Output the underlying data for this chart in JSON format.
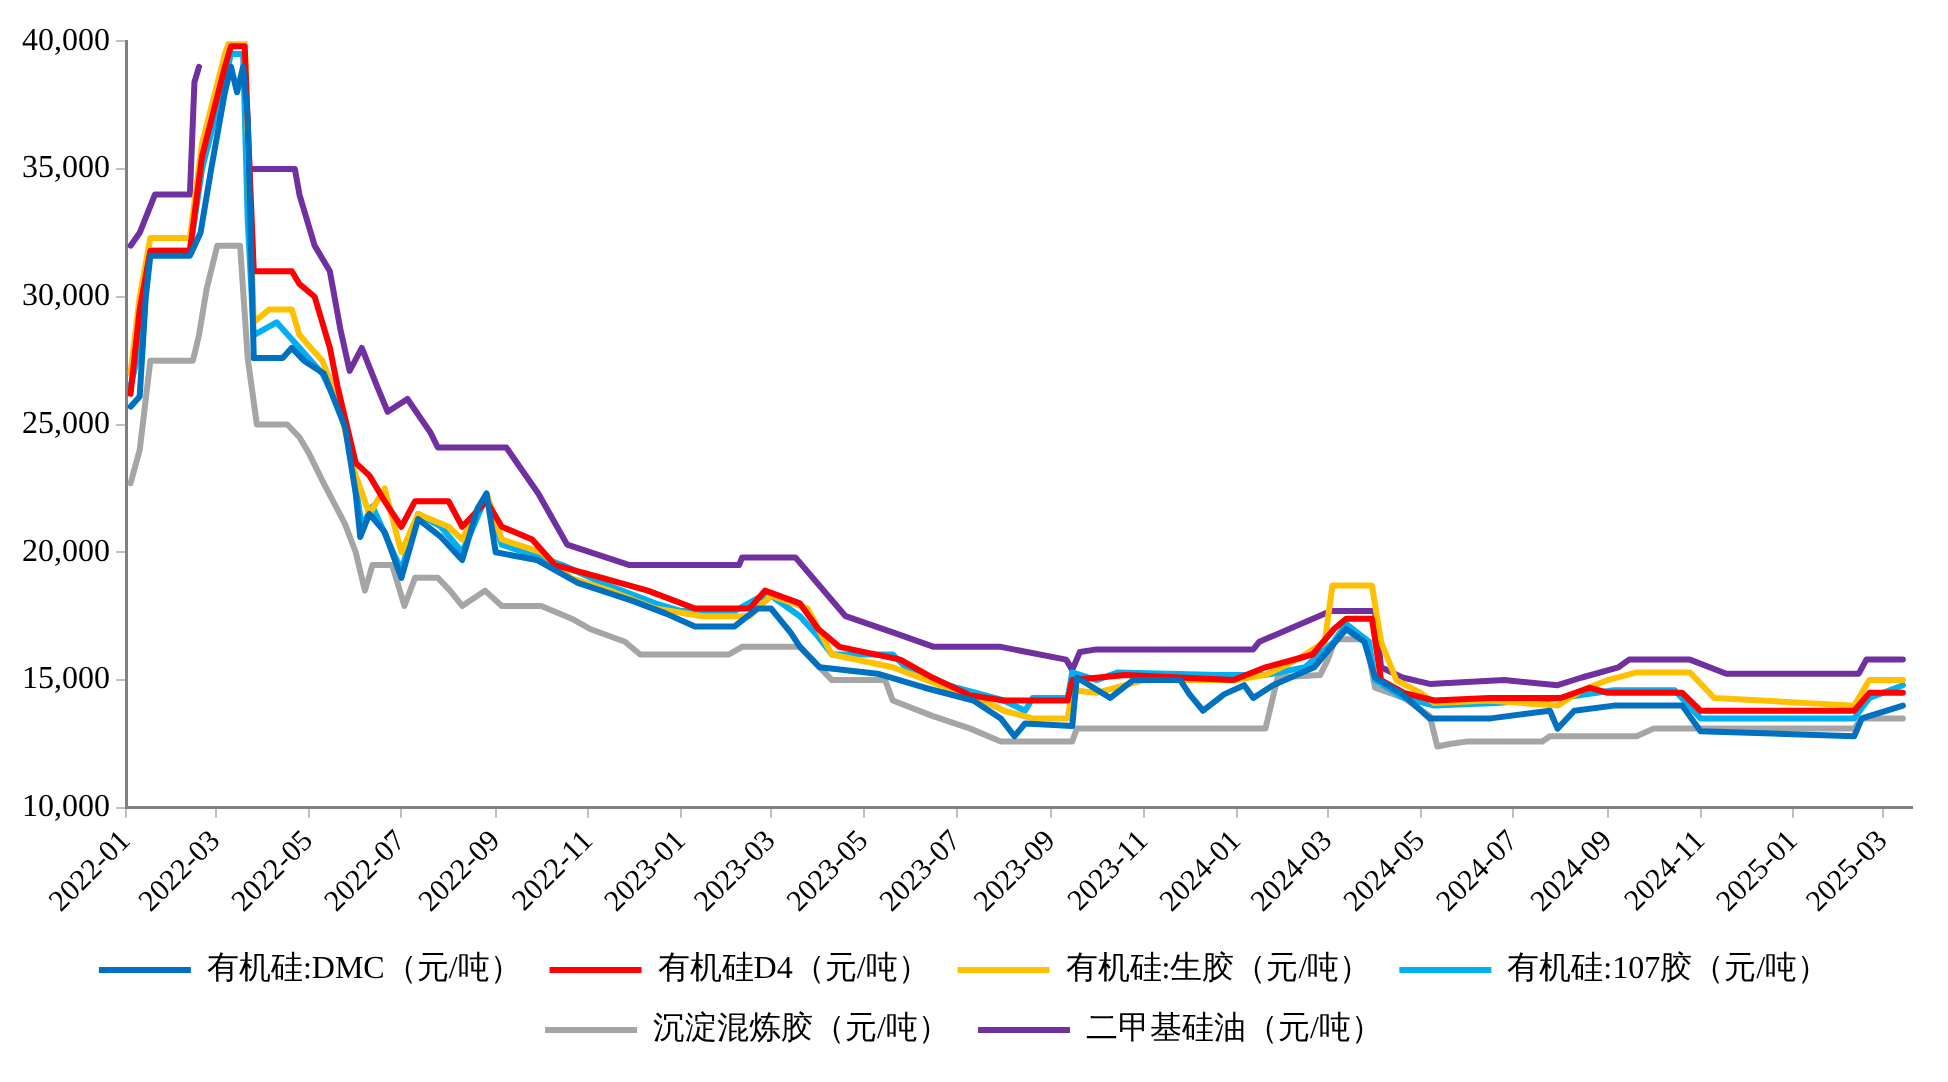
{
  "chart_data": {
    "type": "line",
    "marker": "none",
    "legend": "bottom",
    "grid": false,
    "xlim": [
      "2022-01-01",
      "2025-03-20"
    ],
    "xticks": [
      "2022-01",
      "2022-03",
      "2022-05",
      "2022-07",
      "2022-09",
      "2022-11",
      "2023-01",
      "2023-03",
      "2023-05",
      "2023-07",
      "2023-09",
      "2023-11",
      "2024-01",
      "2024-03",
      "2024-05",
      "2024-07",
      "2024-09",
      "2024-11",
      "2025-01",
      "2025-03"
    ],
    "ylim": [
      10000,
      40000
    ],
    "yticks": [
      {
        "value": 10000,
        "label": "10,000"
      },
      {
        "value": 15000,
        "label": "15,000"
      },
      {
        "value": 20000,
        "label": "20,000"
      },
      {
        "value": 25000,
        "label": "25,000"
      },
      {
        "value": 30000,
        "label": "30,000"
      },
      {
        "value": 35000,
        "label": "35,000"
      },
      {
        "value": 40000,
        "label": "40,000"
      }
    ],
    "series": [
      {
        "name": "有机硅:DMC（元/吨）",
        "color": "#0070c0",
        "x": [
          "2022-01-04",
          "2022-01-10",
          "2022-01-14",
          "2022-01-17",
          "2022-02-12",
          "2022-02-19",
          "2022-02-26",
          "2022-03-07",
          "2022-03-11",
          "2022-03-15",
          "2022-03-19",
          "2022-03-22",
          "2022-03-26",
          "2022-04-14",
          "2022-04-20",
          "2022-04-28",
          "2022-05-11",
          "2022-05-25",
          "2022-06-01",
          "2022-06-04",
          "2022-06-10",
          "2022-06-20",
          "2022-07-01",
          "2022-07-12",
          "2022-07-27",
          "2022-08-10",
          "2022-08-20",
          "2022-08-26",
          "2022-09-01",
          "2022-09-28",
          "2022-10-25",
          "2022-11-30",
          "2022-12-22",
          "2023-01-10",
          "2023-02-05",
          "2023-02-20",
          "2023-03-01",
          "2023-03-14",
          "2023-03-20",
          "2023-04-02",
          "2023-05-10",
          "2023-06-10",
          "2023-07-12",
          "2023-07-30",
          "2023-08-08",
          "2023-08-15",
          "2023-09-15",
          "2023-09-18",
          "2023-10-10",
          "2023-10-25",
          "2023-11-25",
          "2023-12-01",
          "2023-12-10",
          "2023-12-24",
          "2024-01-06",
          "2024-01-12",
          "2024-01-25",
          "2024-02-21",
          "2024-03-13",
          "2024-03-25",
          "2024-04-01",
          "2024-04-19",
          "2024-05-07",
          "2024-06-16",
          "2024-07-25",
          "2024-07-30",
          "2024-08-10",
          "2024-09-05",
          "2024-10-20",
          "2024-11-01",
          "2025-02-10",
          "2025-02-15",
          "2025-03-14"
        ],
        "values": [
          25700,
          26100,
          30000,
          31600,
          31600,
          32500,
          35000,
          38000,
          39000,
          38000,
          39000,
          37000,
          27600,
          27600,
          28000,
          27500,
          27000,
          24900,
          22300,
          20600,
          21500,
          20800,
          19000,
          21300,
          20600,
          19700,
          21700,
          22300,
          20000,
          19700,
          18800,
          18100,
          17600,
          17100,
          17100,
          17800,
          17800,
          16850,
          16300,
          15500,
          15250,
          14700,
          14200,
          13500,
          12800,
          13300,
          13200,
          15100,
          14300,
          15000,
          15000,
          14450,
          13800,
          14450,
          14800,
          14300,
          14800,
          15500,
          17000,
          16500,
          15100,
          14450,
          13500,
          13500,
          13800,
          13100,
          13800,
          14000,
          14000,
          13000,
          12800,
          13500,
          14000
        ]
      },
      {
        "name": "有机硅D4（元/吨）",
        "color": "#ff0000",
        "x": [
          "2022-01-04",
          "2022-01-10",
          "2022-01-17",
          "2022-02-12",
          "2022-02-20",
          "2022-03-07",
          "2022-03-11",
          "2022-03-20",
          "2022-03-26",
          "2022-04-20",
          "2022-04-25",
          "2022-05-05",
          "2022-05-15",
          "2022-05-20",
          "2022-06-01",
          "2022-06-10",
          "2022-06-20",
          "2022-07-01",
          "2022-07-10",
          "2022-08-01",
          "2022-08-10",
          "2022-08-26",
          "2022-09-05",
          "2022-09-25",
          "2022-10-10",
          "2022-11-10",
          "2022-12-10",
          "2023-01-10",
          "2023-02-15",
          "2023-02-25",
          "2023-03-20",
          "2023-04-01",
          "2023-04-15",
          "2023-05-25",
          "2023-06-15",
          "2023-07-10",
          "2023-08-01",
          "2023-09-12",
          "2023-09-15",
          "2023-10-20",
          "2023-12-30",
          "2024-01-20",
          "2024-02-20",
          "2024-03-05",
          "2024-03-13",
          "2024-03-30",
          "2024-04-05",
          "2024-04-20",
          "2024-05-10",
          "2024-06-15",
          "2024-08-01",
          "2024-08-20",
          "2024-09-01",
          "2024-10-20",
          "2024-11-01",
          "2025-02-10",
          "2025-02-20",
          "2025-03-14"
        ],
        "values": [
          26200,
          29500,
          31800,
          31800,
          35500,
          39000,
          39800,
          39800,
          31000,
          31000,
          30500,
          30000,
          28000,
          26500,
          23500,
          23000,
          22000,
          21000,
          22000,
          22000,
          21000,
          22000,
          21000,
          20500,
          19500,
          19000,
          18500,
          17800,
          17800,
          18500,
          18000,
          17000,
          16300,
          15800,
          15100,
          14400,
          14200,
          14200,
          15000,
          15200,
          15000,
          15500,
          16000,
          17000,
          17400,
          17400,
          15000,
          14500,
          14200,
          14300,
          14300,
          14700,
          14500,
          14500,
          13800,
          13800,
          14500,
          14500
        ]
      },
      {
        "name": "有机硅:生胶（元/吨）",
        "color": "#ffc000",
        "x": [
          "2022-01-04",
          "2022-01-10",
          "2022-01-17",
          "2022-02-12",
          "2022-02-20",
          "2022-03-07",
          "2022-03-10",
          "2022-03-20",
          "2022-03-26",
          "2022-04-05",
          "2022-04-20",
          "2022-04-25",
          "2022-05-10",
          "2022-05-20",
          "2022-06-01",
          "2022-06-10",
          "2022-06-20",
          "2022-07-01",
          "2022-07-12",
          "2022-08-01",
          "2022-08-10",
          "2022-08-26",
          "2022-09-05",
          "2022-10-01",
          "2022-10-20",
          "2022-11-15",
          "2022-12-15",
          "2023-01-15",
          "2023-02-15",
          "2023-03-01",
          "2023-03-25",
          "2023-04-10",
          "2023-05-20",
          "2023-06-20",
          "2023-07-15",
          "2023-08-01",
          "2023-08-20",
          "2023-09-12",
          "2023-09-15",
          "2023-10-01",
          "2023-11-01",
          "2023-12-31",
          "2024-01-20",
          "2024-02-10",
          "2024-02-28",
          "2024-03-04",
          "2024-03-30",
          "2024-04-05",
          "2024-04-15",
          "2024-05-01",
          "2024-05-10",
          "2024-06-15",
          "2024-07-30",
          "2024-08-15",
          "2024-09-01",
          "2024-09-20",
          "2024-10-25",
          "2024-11-10",
          "2025-02-10",
          "2025-02-20",
          "2025-03-14"
        ],
        "values": [
          27000,
          30000,
          32300,
          32300,
          36000,
          39500,
          40000,
          40000,
          29000,
          29500,
          29500,
          28500,
          27500,
          26000,
          23000,
          21500,
          22500,
          20000,
          21500,
          21000,
          20500,
          22300,
          20500,
          20000,
          19000,
          18500,
          17800,
          17500,
          17500,
          18300,
          17800,
          16000,
          15500,
          14800,
          14300,
          13800,
          13500,
          13500,
          14600,
          14500,
          15000,
          15000,
          15200,
          15800,
          16500,
          18700,
          18700,
          16500,
          15000,
          14500,
          14100,
          14200,
          14000,
          14600,
          15000,
          15300,
          15300,
          14300,
          14000,
          15000,
          15000
        ]
      },
      {
        "name": "有机硅:107胶（元/吨）",
        "color": "#00b0f0",
        "x": [
          "2022-01-04",
          "2022-01-10",
          "2022-01-17",
          "2022-02-12",
          "2022-02-20",
          "2022-03-07",
          "2022-03-11",
          "2022-03-19",
          "2022-03-22",
          "2022-03-26",
          "2022-04-10",
          "2022-04-25",
          "2022-05-10",
          "2022-05-25",
          "2022-06-01",
          "2022-06-05",
          "2022-06-12",
          "2022-07-01",
          "2022-07-12",
          "2022-07-27",
          "2022-08-10",
          "2022-08-26",
          "2022-09-05",
          "2022-10-15",
          "2022-11-10",
          "2022-12-15",
          "2023-01-01",
          "2023-02-05",
          "2023-02-20",
          "2023-03-01",
          "2023-03-20",
          "2023-04-01",
          "2023-04-10",
          "2023-05-20",
          "2023-06-01",
          "2023-07-01",
          "2023-08-01",
          "2023-08-15",
          "2023-08-20",
          "2023-09-12",
          "2023-09-15",
          "2023-10-01",
          "2023-10-15",
          "2023-12-20",
          "2024-01-20",
          "2024-02-15",
          "2024-03-05",
          "2024-03-13",
          "2024-03-28",
          "2024-04-01",
          "2024-04-20",
          "2024-05-10",
          "2024-06-20",
          "2024-08-01",
          "2024-09-05",
          "2024-10-15",
          "2024-11-01",
          "2025-02-10",
          "2025-02-20",
          "2025-03-14"
        ],
        "values": [
          26500,
          28000,
          31800,
          31800,
          35000,
          38500,
          39500,
          39500,
          33000,
          28500,
          29000,
          28000,
          27000,
          25200,
          22600,
          21000,
          21800,
          19300,
          21500,
          21000,
          20000,
          22200,
          20300,
          19500,
          18800,
          18000,
          17700,
          17700,
          18200,
          18300,
          17500,
          16700,
          16000,
          16000,
          15300,
          14700,
          14200,
          13800,
          14300,
          14300,
          15300,
          15000,
          15300,
          15200,
          15200,
          15500,
          16500,
          17200,
          16500,
          15000,
          14300,
          14000,
          14100,
          14300,
          14600,
          14600,
          13500,
          13500,
          14300,
          14800
        ]
      },
      {
        "name": "沉淀混炼胶（元/吨）",
        "color": "#a5a5a5",
        "x": [
          "2022-01-04",
          "2022-01-10",
          "2022-01-17",
          "2022-02-14",
          "2022-02-18",
          "2022-02-23",
          "2022-03-02",
          "2022-03-17",
          "2022-03-22",
          "2022-03-28",
          "2022-04-17",
          "2022-04-25",
          "2022-05-01",
          "2022-05-11",
          "2022-05-25",
          "2022-06-01",
          "2022-06-07",
          "2022-06-12",
          "2022-06-25",
          "2022-07-03",
          "2022-07-10",
          "2022-07-25",
          "2022-08-02",
          "2022-08-10",
          "2022-08-25",
          "2022-09-05",
          "2022-10-01",
          "2022-10-21",
          "2022-11-02",
          "2022-11-25",
          "2022-12-05",
          "2023-02-01",
          "2023-02-10",
          "2023-03-20",
          "2023-04-02",
          "2023-04-10",
          "2023-05-15",
          "2023-05-20",
          "2023-06-15",
          "2023-07-10",
          "2023-07-30",
          "2023-09-15",
          "2023-09-18",
          "2024-01-20",
          "2024-01-28",
          "2024-02-25",
          "2024-03-01",
          "2024-03-06",
          "2024-03-26",
          "2024-04-01",
          "2024-04-20",
          "2024-05-07",
          "2024-05-12",
          "2024-05-20",
          "2024-06-01",
          "2024-07-20",
          "2024-07-25",
          "2024-09-20",
          "2024-10-01",
          "2025-02-10",
          "2025-02-15",
          "2025-03-14"
        ],
        "values": [
          22700,
          24000,
          27500,
          27500,
          28500,
          30300,
          32000,
          32000,
          27600,
          25000,
          25000,
          24500,
          23900,
          22700,
          21100,
          20000,
          18500,
          19500,
          19500,
          17900,
          19000,
          19000,
          18500,
          17900,
          18500,
          17900,
          17900,
          17400,
          17000,
          16500,
          16000,
          16000,
          16300,
          16300,
          15500,
          15000,
          15000,
          14200,
          13600,
          13100,
          12600,
          12600,
          13100,
          13100,
          15100,
          15200,
          15800,
          16600,
          16600,
          14700,
          14300,
          13600,
          12400,
          12500,
          12600,
          12600,
          12800,
          12800,
          13100,
          13100,
          13500,
          13500
        ]
      },
      {
        "name": "二甲基硅油（元/吨）",
        "color": "#7030a0",
        "x": [
          "2022-01-04",
          "2022-01-10",
          "2022-01-20",
          "2022-02-12",
          "2022-02-15",
          "2022-02-18",
          "2022-02-21",
          "2022-03-20",
          "2022-03-26",
          "2022-04-22",
          "2022-04-25",
          "2022-04-30",
          "2022-05-05",
          "2022-05-15",
          "2022-05-22",
          "2022-05-28",
          "2022-06-05",
          "2022-06-15",
          "2022-06-22",
          "2022-07-05",
          "2022-07-20",
          "2022-07-25",
          "2022-09-08",
          "2022-09-29",
          "2022-10-18",
          "2022-11-28",
          "2023-02-08",
          "2023-02-10",
          "2023-03-17",
          "2023-04-19",
          "2023-05-21",
          "2023-06-16",
          "2023-07-30",
          "2023-09-11",
          "2023-09-15",
          "2023-09-20",
          "2023-10-01",
          "2024-01-12",
          "2024-01-16",
          "2024-03-03",
          "2024-04-01",
          "2024-04-05",
          "2024-04-19",
          "2024-05-07",
          "2024-06-25",
          "2024-07-30",
          "2024-08-15",
          "2024-09-08",
          "2024-09-15",
          "2024-10-25",
          "2024-11-18",
          "2025-02-13",
          "2025-02-18",
          "2025-03-14"
        ],
        "values": [
          32000,
          32500,
          34000,
          34000,
          38400,
          39000,
          null,
          null,
          35000,
          35000,
          34000,
          33000,
          32000,
          31000,
          28700,
          27100,
          28000,
          26500,
          25500,
          26000,
          24700,
          24100,
          24100,
          22300,
          20300,
          19500,
          19500,
          19800,
          19800,
          17500,
          16850,
          16300,
          16300,
          15800,
          15400,
          16100,
          16200,
          16200,
          16500,
          17700,
          17700,
          15500,
          15100,
          14850,
          15000,
          14800,
          15100,
          15500,
          15800,
          15800,
          15250,
          15250,
          15800,
          15800
        ]
      }
    ]
  }
}
